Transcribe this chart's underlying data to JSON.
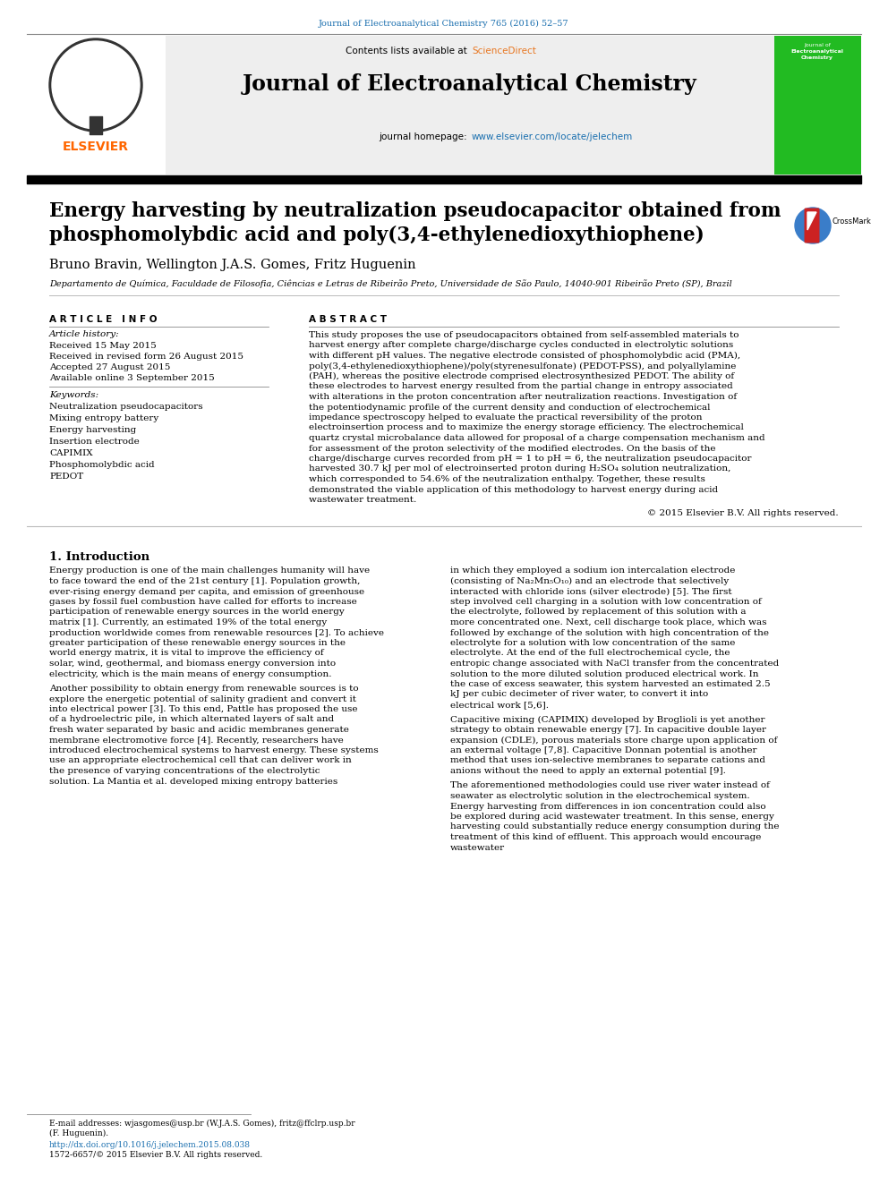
{
  "top_journal_ref": "Journal of Electroanalytical Chemistry 765 (2016) 52–57",
  "contents_text": "Contents lists available at ",
  "science_direct": "ScienceDirect",
  "journal_title": "Journal of Electroanalytical Chemistry",
  "journal_homepage_label": "journal homepage: ",
  "journal_homepage_url": "www.elsevier.com/locate/jelechem",
  "paper_title_line1": "Energy harvesting by neutralization pseudocapacitor obtained from",
  "paper_title_line2": "phosphomolybdic acid and poly(3,4-ethylenedioxythiophene)",
  "authors": "Bruno Bravin, Wellington J.A.S. Gomes, Fritz Huguenin",
  "affiliation": "Departamento de Química, Faculdade de Filosofia, Ciências e Letras de Ribeirão Preto, Universidade de São Paulo, 14040-901 Ribeirão Preto (SP), Brazil",
  "article_info_header": "A R T I C L E   I N F O",
  "article_history_header": "Article history:",
  "received": "Received 15 May 2015",
  "received_revised": "Received in revised form 26 August 2015",
  "accepted": "Accepted 27 August 2015",
  "available_online": "Available online 3 September 2015",
  "keywords_header": "Keywords:",
  "keywords": [
    "Neutralization pseudocapacitors",
    "Mixing entropy battery",
    "Energy harvesting",
    "Insertion electrode",
    "CAPIMIX",
    "Phosphomolybdic acid",
    "PEDOT"
  ],
  "abstract_header": "A B S T R A C T",
  "abstract": "This study proposes the use of pseudocapacitors obtained from self-assembled materials to harvest energy after complete charge/discharge cycles conducted in electrolytic solutions with different pH values. The negative electrode consisted of phosphomolybdic acid (PMA), poly(3,4-ethylenedioxythiophene)/poly(styrenesulfonate) (PEDOT-PSS), and polyallylamine (PAH), whereas the positive electrode comprised electrosynthesized PEDOT. The ability of these electrodes to harvest energy resulted from the partial change in entropy associated with alterations in the proton concentration after neutralization reactions. Investigation of the potentiodynamic profile of the current density and conduction of electrochemical impedance spectroscopy helped to evaluate the practical reversibility of the proton electroinsertion process and to maximize the energy storage efficiency. The electrochemical quartz crystal microbalance data allowed for proposal of a charge compensation mechanism and for assessment of the proton selectivity of the modified electrodes. On the basis of the charge/discharge curves recorded from pH = 1 to pH = 6, the neutralization pseudocapacitor harvested 30.7 kJ per mol of electroinserted proton during H₂SO₄ solution neutralization, which corresponded to 54.6% of the neutralization enthalpy. Together, these results demonstrated the viable application of this methodology to harvest energy during acid wastewater treatment.",
  "copyright": "© 2015 Elsevier B.V. All rights reserved.",
  "section1_title": "1. Introduction",
  "intro_para1": "    Energy production is one of the main challenges humanity will have to face toward the end of the 21st century [1]. Population growth, ever-rising energy demand per capita, and emission of greenhouse gases by fossil fuel combustion have called for efforts to increase participation of renewable energy sources in the world energy matrix [1]. Currently, an estimated 19% of the total energy production worldwide comes from renewable resources [2]. To achieve greater participation of these renewable energy sources in the world energy matrix, it is vital to improve the efficiency of solar, wind, geothermal, and biomass energy conversion into electricity, which is the main means of energy consumption.",
  "intro_para2": "    Another possibility to obtain energy from renewable sources is to explore the energetic potential of salinity gradient and convert it into electrical power [3]. To this end, Pattle has proposed the use of a hydroelectric pile, in which alternated layers of salt and fresh water separated by basic and acidic membranes generate membrane electromotive force [4]. Recently, researchers have introduced electrochemical systems to harvest energy. These systems use an appropriate electrochemical cell that can deliver work in the presence of varying concentrations of the electrolytic solution. La Mantia et al. developed mixing entropy batteries",
  "right_para1": "in which they employed a sodium ion intercalation electrode (consisting of Na₂Mn₅O₁₀) and an electrode that selectively interacted with chloride ions (silver electrode) [5]. The first step involved cell charging in a solution with low concentration of the electrolyte, followed by replacement of this solution with a more concentrated one. Next, cell discharge took place, which was followed by exchange of the solution with high concentration of the electrolyte for a solution with low concentration of the same electrolyte. At the end of the full electrochemical cycle, the entropic change associated with NaCl transfer from the concentrated solution to the more diluted solution produced electrical work. In the case of excess seawater, this system harvested an estimated 2.5 kJ per cubic decimeter of river water, to convert it into electrical work [5,6].",
  "right_para2": "    Capacitive mixing (CAPIMIX) developed by Broglioli is yet another strategy to obtain renewable energy [7]. In capacitive double layer expansion (CDLE), porous materials store charge upon application of an external voltage [7,8]. Capacitive Donnan potential is another method that uses ion-selective membranes to separate cations and anions without the need to apply an external potential [9].",
  "right_para3": "    The aforementioned methodologies could use river water instead of seawater as electrolytic solution in the electrochemical system. Energy harvesting from differences in ion concentration could also be explored during acid wastewater treatment. In this sense, energy harvesting could substantially reduce energy consumption during the treatment of this kind of effluent. This approach would encourage wastewater",
  "footer_email": "E-mail addresses: wjasgomes@usp.br (W.J.A.S. Gomes), fritz@ffclrp.usp.br",
  "footer_email2": "(F. Huguenin).",
  "footer_doi": "http://dx.doi.org/10.1016/j.jelechem.2015.08.038",
  "footer_issn": "1572-6657/© 2015 Elsevier B.V. All rights reserved.",
  "blue_color": "#1a6faf",
  "sciencedirect_color": "#e87722",
  "elsevier_orange": "#ff6600",
  "header_bg": "#eeeeee",
  "medium_gray": "#888888",
  "light_gray": "#bbbbbb"
}
